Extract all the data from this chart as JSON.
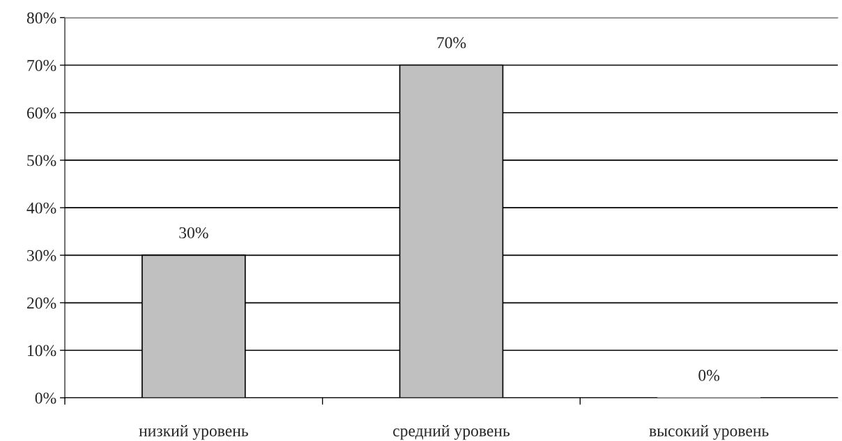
{
  "chart_data": {
    "type": "bar",
    "categories": [
      "низкий уровень",
      "средний уровень",
      "высокий уровень"
    ],
    "values": [
      30,
      70,
      0
    ],
    "color": "#c0c0c0",
    "value_labels": [
      "30%",
      "70%",
      "0%"
    ],
    "ylim": [
      0,
      80
    ],
    "yticks": [
      {
        "value": 0,
        "label": "0%"
      },
      {
        "value": 10,
        "label": "10%"
      },
      {
        "value": 20,
        "label": "20%"
      },
      {
        "value": 30,
        "label": "30%"
      },
      {
        "value": 40,
        "label": "40%"
      },
      {
        "value": 50,
        "label": "50%"
      },
      {
        "value": 60,
        "label": "60%"
      },
      {
        "value": 70,
        "label": "70%"
      },
      {
        "value": 80,
        "label": "80%"
      }
    ],
    "grid": "y",
    "legend": false
  }
}
